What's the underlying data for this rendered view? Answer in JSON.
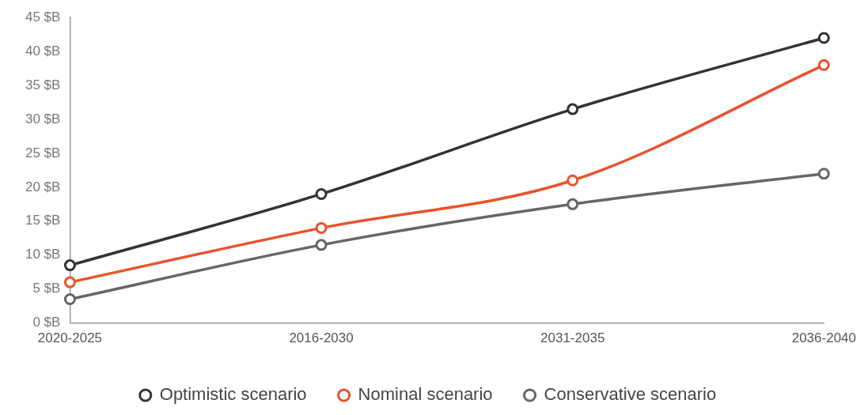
{
  "chart_data": {
    "type": "line",
    "categories": [
      "2020-2025",
      "2016-2030",
      "2031-2035",
      "2036-2040"
    ],
    "series": [
      {
        "name": "Optimistic scenario",
        "color": "#333333",
        "values": [
          8.5,
          19,
          31.5,
          42
        ]
      },
      {
        "name": "Nominal scenario",
        "color": "#e8532b",
        "values": [
          6,
          14,
          21,
          38
        ]
      },
      {
        "name": "Conservative scenario",
        "color": "#666666",
        "values": [
          3.5,
          11.5,
          17.5,
          22
        ]
      }
    ],
    "ylim": [
      0,
      45
    ],
    "yticks": [
      {
        "value": 0,
        "label": "0 $B"
      },
      {
        "value": 5,
        "label": "5 $B"
      },
      {
        "value": 10,
        "label": "10 $B"
      },
      {
        "value": 15,
        "label": "15 $B"
      },
      {
        "value": 20,
        "label": "20 $B"
      },
      {
        "value": 25,
        "label": "25 $B"
      },
      {
        "value": 30,
        "label": "30 $B"
      },
      {
        "value": 35,
        "label": "35 $B"
      },
      {
        "value": 40,
        "label": "40 $B"
      },
      {
        "value": 45,
        "label": "45 $B"
      }
    ],
    "grid": false,
    "legend": "bottom",
    "marker": "circle",
    "line_style": "solid"
  }
}
